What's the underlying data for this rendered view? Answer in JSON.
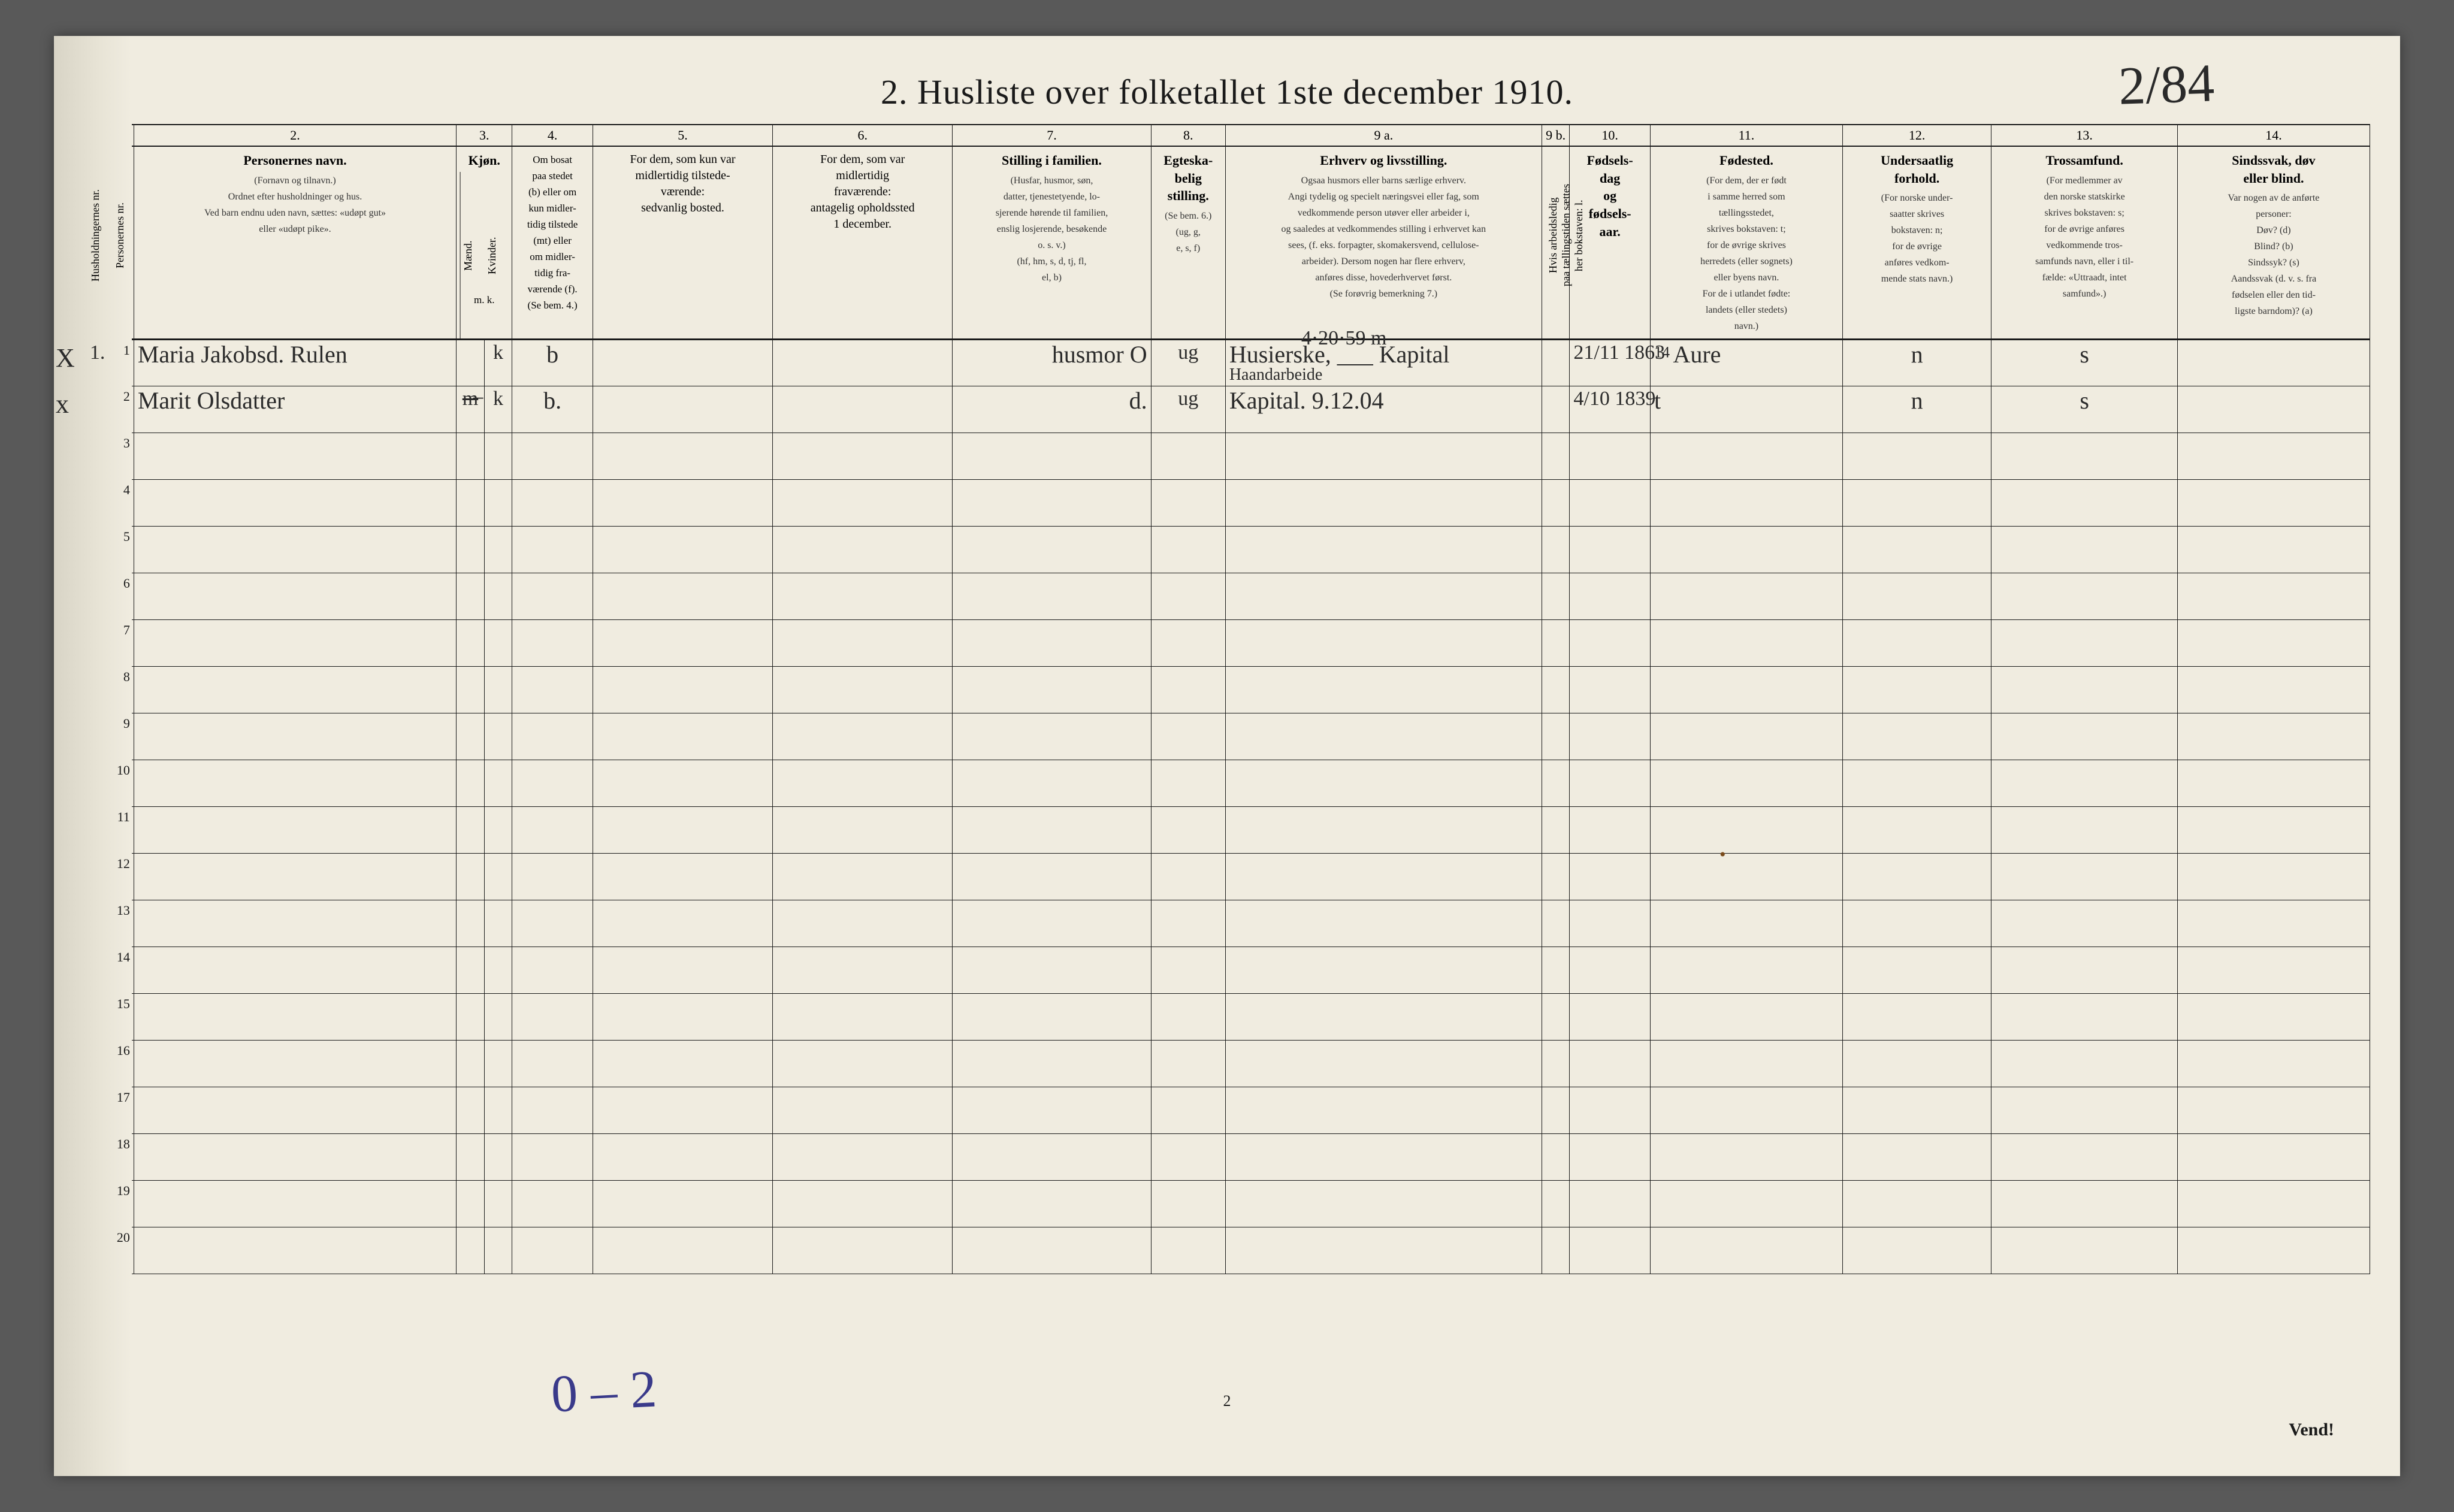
{
  "title": "2.   Husliste over folketallet 1ste december 1910.",
  "hand_top_right": "2/84",
  "bottom_hand": "0 – 2",
  "page_num_bottom": "2",
  "vend_label": "Vend!",
  "col_numbers": [
    "1.",
    "2.",
    "3.",
    "4.",
    "5.",
    "6.",
    "7.",
    "8.",
    "9 a.",
    "9 b.",
    "10.",
    "11.",
    "12.",
    "13.",
    "14."
  ],
  "headers": {
    "c1a": "Husholdningernes nr.",
    "c1b": "Personernes nr.",
    "c2_bold": "Personernes navn.",
    "c2_sub": "(Fornavn og tilnavn.)\nOrdnet efter husholdninger og hus.\nVed barn endnu uden navn, sættes: «udøpt gut»\neller «udøpt pike».",
    "c3_bold": "Kjøn.",
    "c3_sub_m": "Mænd.",
    "c3_sub_k": "Kvinder.",
    "c3_mk": "m.  k.",
    "c4": "Om bosat\npaa stedet\n(b) eller om\nkun midler-\ntidig tilstede\n(mt) eller\nom midler-\ntidig fra-\nværende (f).\n(Se bem. 4.)",
    "c5": "For dem, som kun var\nmidlertidig tilstede-\nværende:\nsedvanlig bosted.",
    "c6": "For dem, som var\nmidlertidig\nfraværende:\nantagelig opholdssted\n1 december.",
    "c7_bold": "Stilling i familien.",
    "c7_sub": "(Husfar, husmor, søn,\ndatter, tjenestetyende, lo-\nsjerende hørende til familien,\nenslig losjerende, besøkende\no. s. v.)\n(hf, hm, s, d, tj, fl,\nel, b)",
    "c8_bold": "Egteska-\nbelig\nstilling.",
    "c8_sub": "(Se bem. 6.)\n(ug, g,\ne, s, f)",
    "c9a_bold": "Erhverv og livsstilling.",
    "c9a_sub": "Ogsaa husmors eller barns særlige erhverv.\nAngi tydelig og specielt næringsvei eller fag, som\nvedkommende person utøver eller arbeider i,\nog saaledes at vedkommendes stilling i erhvervet kan\nsees, (f. eks. forpagter, skomakersvend, cellulose-\narbeider). Dersom nogen har flere erhverv,\nanføres disse, hovederhvervet først.\n(Se forøvrig bemerkning 7.)",
    "c9b": "Hvis arbeidsledig\npaa tællingstiden sættes\nher bokstaven: l.",
    "c10_bold": "Fødsels-\ndag\nog\nfødsels-\naar.",
    "c11_bold": "Fødested.",
    "c11_sub": "(For dem, der er født\ni samme herred som\ntællingsstedet,\nskrives bokstaven: t;\nfor de øvrige skrives\nherredets (eller sognets)\neller byens navn.\nFor de i utlandet fødte:\nlandets (eller stedets)\nnavn.)",
    "c12_bold": "Undersaatlig\nforhold.",
    "c12_sub": "(For norske under-\nsaatter skrives\nbokstaven: n;\nfor de øvrige\nanføres vedkom-\nmende stats navn.)",
    "c13_bold": "Trossamfund.",
    "c13_sub": "(For medlemmer av\nden norske statskirke\nskrives bokstaven: s;\nfor de øvrige anføres\nvedkommende tros-\nsamfunds navn, eller i til-\nfælde: «Uttraadt, intet\nsamfund».)",
    "c14_bold": "Sindssvak, døv\neller blind.",
    "c14_sub": "Var nogen av de anførte\npersoner:\nDøv?       (d)\nBlind?      (b)\nSindssyk?  (s)\nAandssvak (d. v. s. fra\nfødselen eller den tid-\nligste barndom)?  (a)"
  },
  "rows": [
    {
      "x": "X",
      "hh": "1.",
      "pn": "1",
      "name": "Maria Jakobsd. Rulen",
      "sex_m": "",
      "sex_k": "k",
      "res": "b",
      "c5": "",
      "c6": "",
      "fam": "husmor O",
      "marital": "ug",
      "occ_top": "4·20·59 m",
      "occ": "Husierske, ___ Kapital",
      "occ_sub": "Haandarbeide",
      "c9b": "",
      "dob": "21/11 1863",
      "birthpl_pre": "14",
      "birthpl": "Aure",
      "nat": "n",
      "faith": "s",
      "dis": ""
    },
    {
      "x": "x",
      "hh": "",
      "pn": "2",
      "name": "Marit Olsdatter",
      "sex_m": "m̶",
      "sex_k": "k",
      "res": "b.",
      "c5": "",
      "c6": "",
      "fam": "d.",
      "marital": "ug",
      "occ_top": "",
      "occ": "Kapital.  9.12.04",
      "occ_sub": "",
      "c9b": "",
      "dob": "4/10 1839",
      "birthpl_pre": "",
      "birthpl": "t",
      "nat": "n",
      "faith": "s",
      "dis": ""
    }
  ],
  "empty_rows": [
    3,
    4,
    5,
    6,
    7,
    8,
    9,
    10,
    11,
    12,
    13,
    14,
    15,
    16,
    17,
    18,
    19,
    20
  ],
  "colwidths": {
    "c1a": 40,
    "c1b": 40,
    "c2": 520,
    "c3m": 45,
    "c3k": 45,
    "c4": 130,
    "c5": 290,
    "c6": 290,
    "c7": 320,
    "c8": 120,
    "c9a": 510,
    "c9b": 45,
    "c10": 130,
    "c11": 310,
    "c12": 240,
    "c13": 300,
    "c14": 310
  }
}
